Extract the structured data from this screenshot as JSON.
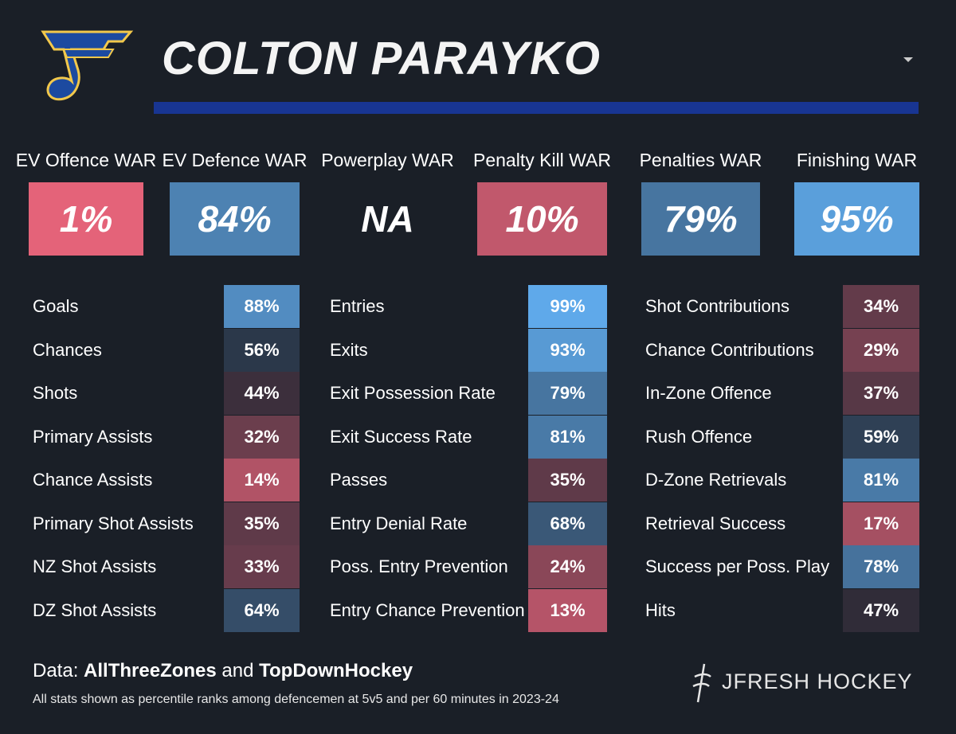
{
  "header": {
    "title": "COLTON PARAYKO"
  },
  "war": [
    {
      "label": "EV Offence WAR",
      "value": "1%"
    },
    {
      "label": "EV Defence WAR",
      "value": "84%"
    },
    {
      "label": "Powerplay WAR",
      "value": "NA"
    },
    {
      "label": "Penalty Kill WAR",
      "value": "10%"
    },
    {
      "label": "Penalties WAR",
      "value": "79%"
    },
    {
      "label": "Finishing WAR",
      "value": "95%"
    }
  ],
  "stats": [
    [
      {
        "label": "Goals",
        "value": "88%"
      },
      {
        "label": "Chances",
        "value": "56%"
      },
      {
        "label": "Shots",
        "value": "44%"
      },
      {
        "label": "Primary Assists",
        "value": "32%"
      },
      {
        "label": "Chance Assists",
        "value": "14%"
      },
      {
        "label": "Primary Shot Assists",
        "value": "35%"
      },
      {
        "label": "NZ Shot Assists",
        "value": "33%"
      },
      {
        "label": "DZ Shot Assists",
        "value": "64%"
      }
    ],
    [
      {
        "label": "Entries",
        "value": "99%"
      },
      {
        "label": "Exits",
        "value": "93%"
      },
      {
        "label": "Exit Possession Rate",
        "value": "79%"
      },
      {
        "label": "Exit Success Rate",
        "value": "81%"
      },
      {
        "label": "Passes",
        "value": "35%"
      },
      {
        "label": "Entry Denial Rate",
        "value": "68%"
      },
      {
        "label": "Poss. Entry Prevention",
        "value": "24%"
      },
      {
        "label": "Entry Chance Prevention",
        "value": "13%"
      }
    ],
    [
      {
        "label": "Shot Contributions",
        "value": "34%"
      },
      {
        "label": "Chance Contributions",
        "value": "29%"
      },
      {
        "label": "In-Zone Offence",
        "value": "37%"
      },
      {
        "label": "Rush Offence",
        "value": "59%"
      },
      {
        "label": "D-Zone Retrievals",
        "value": "81%"
      },
      {
        "label": "Retrieval Success",
        "value": "17%"
      },
      {
        "label": "Success per Poss. Play",
        "value": "78%"
      },
      {
        "label": "Hits",
        "value": "47%"
      }
    ]
  ],
  "footer": {
    "source_prefix": "Data:",
    "source_1": "AllThreeZones",
    "source_joiner": "and",
    "source_2": "TopDownHockey",
    "note": "All stats shown as percentile ranks among defencemen at 5v5 and per 60 minutes in 2023-24",
    "brand": "JFRESH HOCKEY"
  }
}
